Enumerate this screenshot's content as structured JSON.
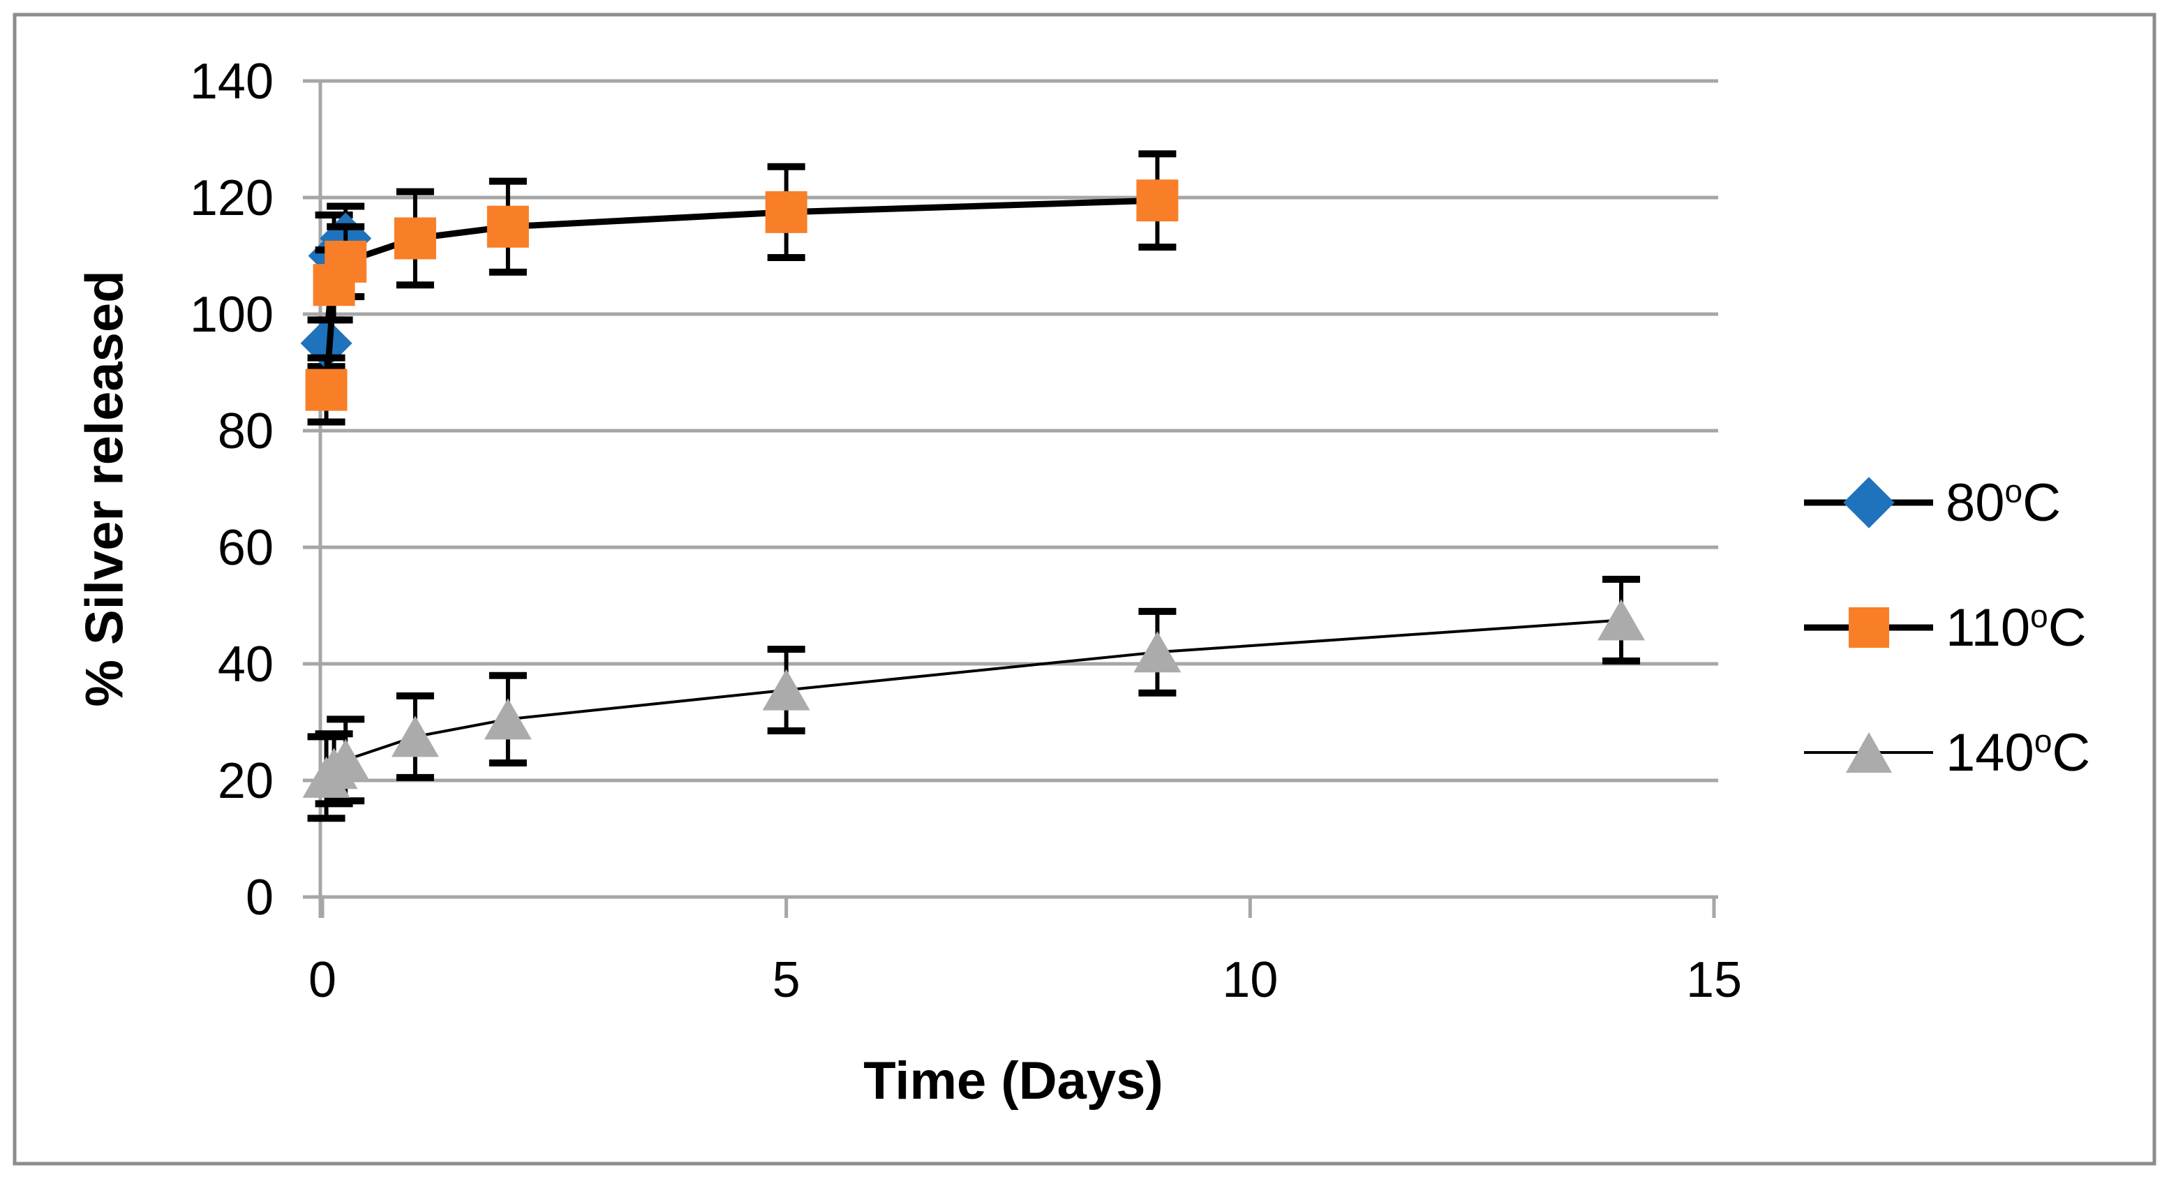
{
  "figure": {
    "background": "#FFFFFF",
    "border_color": "#8C8C8C"
  },
  "chart_data": {
    "type": "line",
    "title": "",
    "xlabel": "Time (Days)",
    "ylabel": "% Silver released",
    "xlim": [
      0,
      15
    ],
    "ylim": [
      0,
      140
    ],
    "x_ticks": [
      0,
      5,
      10,
      15
    ],
    "y_ticks": [
      0,
      20,
      40,
      60,
      80,
      100,
      120,
      140
    ],
    "grid": "horizontal",
    "grid_color": "#A6A6A6",
    "text_color": "#000000",
    "error_color": "#000000",
    "legend_position": "right-middle",
    "series": [
      {
        "name": "80C",
        "legend_base": "80",
        "legend_sup": "o",
        "legend_unit": "C",
        "marker": "diamond",
        "color": "#1F72BC",
        "line_color": "#000000",
        "line_width": 9,
        "x": [
          0.042,
          0.125,
          0.25
        ],
        "y": [
          95,
          110,
          113
        ],
        "err": [
          4,
          7,
          5.5
        ]
      },
      {
        "name": "110C",
        "legend_base": "110",
        "legend_sup": "o",
        "legend_unit": "C",
        "marker": "square",
        "color": "#F87F28",
        "line_color": "#000000",
        "line_width": 9,
        "x": [
          0.042,
          0.125,
          0.25,
          1,
          2,
          5,
          9
        ],
        "y": [
          87,
          105,
          109,
          113,
          115,
          117.5,
          119.5
        ],
        "err": [
          5.5,
          6,
          6,
          8,
          7.8,
          7.8,
          8
        ]
      },
      {
        "name": "140C",
        "legend_base": "140",
        "legend_sup": "o",
        "legend_unit": "C",
        "marker": "triangle",
        "color": "#ABABAB",
        "line_color": "#000000",
        "line_width": 4,
        "x": [
          0.042,
          0.125,
          0.25,
          1,
          2,
          5,
          9,
          14
        ],
        "y": [
          20.5,
          22,
          23.5,
          27.5,
          30.5,
          35.5,
          42,
          47.5
        ],
        "err": [
          7,
          6,
          7,
          7,
          7.5,
          7,
          7,
          7
        ]
      }
    ]
  }
}
